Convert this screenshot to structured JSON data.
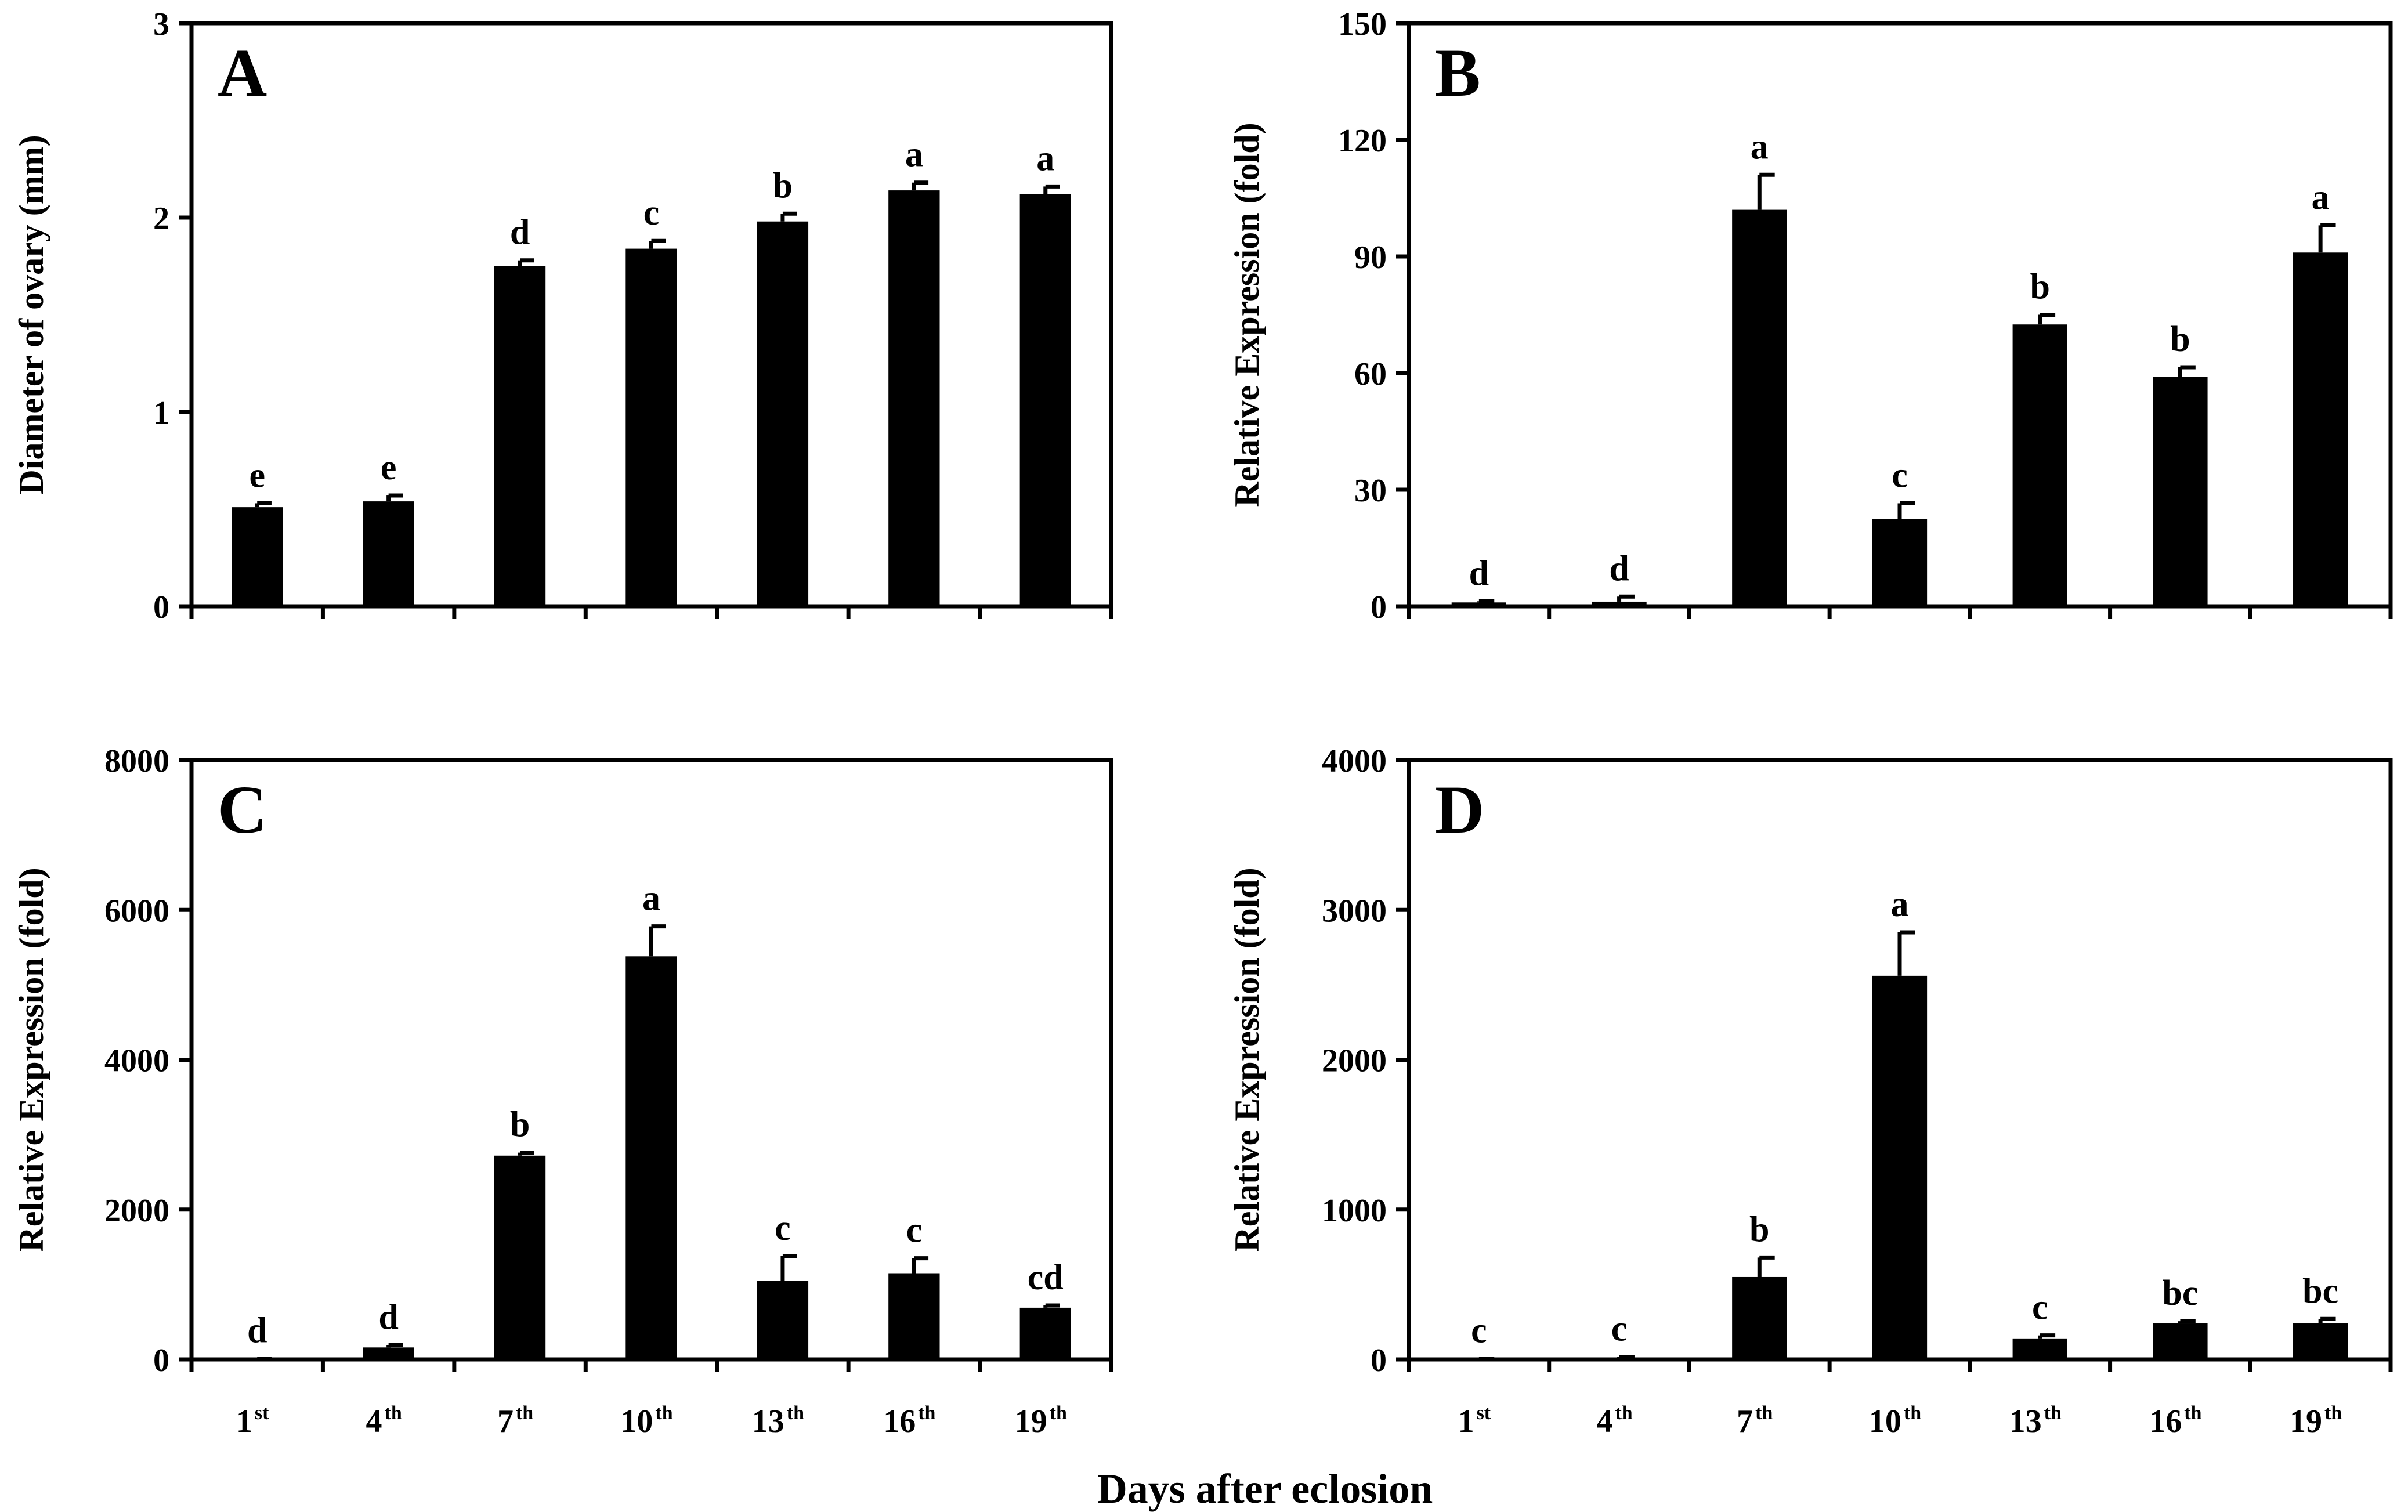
{
  "colors": {
    "bar": "#000000",
    "axis": "#000000",
    "background": "#ffffff"
  },
  "common_xlabel": "Days after eclosion",
  "category_labels": [
    {
      "num": "1",
      "sup": "st"
    },
    {
      "num": "4",
      "sup": "th"
    },
    {
      "num": "7",
      "sup": "th"
    },
    {
      "num": "10",
      "sup": "th"
    },
    {
      "num": "13",
      "sup": "th"
    },
    {
      "num": "16",
      "sup": "th"
    },
    {
      "num": "19",
      "sup": "th"
    }
  ],
  "chart_data": [
    {
      "panel": "A",
      "type": "bar",
      "ylabel": "Diameter of ovary (mm)",
      "ylim": [
        0,
        3
      ],
      "yticks": [
        0,
        1,
        2,
        3
      ],
      "categories": [
        "1st",
        "4th",
        "7th",
        "10th",
        "13th",
        "16th",
        "19th"
      ],
      "values": [
        0.51,
        0.54,
        1.75,
        1.84,
        1.98,
        2.14,
        2.12
      ],
      "errors": [
        0.02,
        0.03,
        0.03,
        0.04,
        0.04,
        0.04,
        0.04
      ],
      "letters": [
        "e",
        "e",
        "d",
        "c",
        "b",
        "a",
        "a"
      ],
      "show_xticklabels": false
    },
    {
      "panel": "B",
      "type": "bar",
      "ylabel": "Relative Expression (fold)",
      "ylim": [
        0,
        150
      ],
      "yticks": [
        0,
        30,
        60,
        90,
        120,
        150
      ],
      "categories": [
        "1st",
        "4th",
        "7th",
        "10th",
        "13th",
        "16th",
        "19th"
      ],
      "values": [
        1,
        1.2,
        102,
        22.5,
        72.5,
        59,
        91
      ],
      "errors": [
        0.3,
        1.3,
        9,
        4,
        2.5,
        2.5,
        7
      ],
      "letters": [
        "d",
        "d",
        "a",
        "c",
        "b",
        "b",
        "a"
      ],
      "show_xticklabels": false
    },
    {
      "panel": "C",
      "type": "bar",
      "ylabel": "Relative Expression (fold)",
      "ylim": [
        0,
        8000
      ],
      "yticks": [
        0,
        2000,
        4000,
        6000,
        8000
      ],
      "categories": [
        "1st",
        "4th",
        "7th",
        "10th",
        "13th",
        "16th",
        "19th"
      ],
      "values": [
        5,
        160,
        2720,
        5380,
        1050,
        1150,
        690
      ],
      "errors": [
        5,
        30,
        40,
        400,
        330,
        200,
        30
      ],
      "letters": [
        "d",
        "d",
        "b",
        "a",
        "c",
        "c",
        "cd"
      ],
      "show_xticklabels": true
    },
    {
      "panel": "D",
      "type": "bar",
      "ylabel": "Relative Expression (fold)",
      "ylim": [
        0,
        4000
      ],
      "yticks": [
        0,
        1000,
        2000,
        3000,
        4000
      ],
      "categories": [
        "1st",
        "4th",
        "7th",
        "10th",
        "13th",
        "16th",
        "19th"
      ],
      "values": [
        3,
        12,
        550,
        2560,
        140,
        240,
        240
      ],
      "errors": [
        2,
        5,
        130,
        290,
        20,
        15,
        30
      ],
      "letters": [
        "c",
        "c",
        "b",
        "a",
        "c",
        "bc",
        "bc"
      ],
      "show_xticklabels": true
    }
  ]
}
